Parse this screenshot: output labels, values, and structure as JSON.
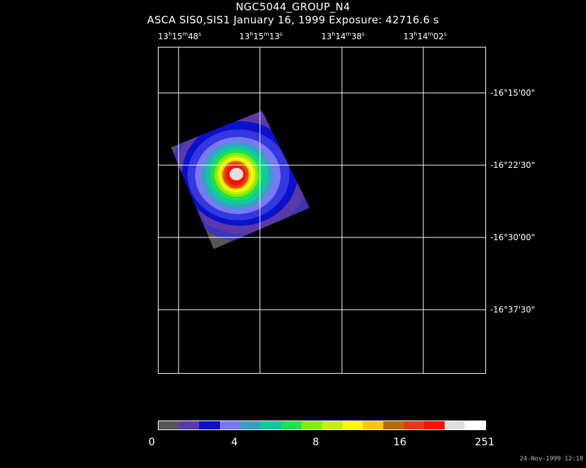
{
  "title": "NGC5044_GROUP_N4",
  "subtitle": "ASCA SIS0,SIS1 January 16, 1999 Exposure: 42716.6 s",
  "ra_ticks": [
    {
      "h": "13",
      "m": "15",
      "s": "48"
    },
    {
      "h": "13",
      "m": "15",
      "s": "13"
    },
    {
      "h": "13",
      "m": "14",
      "s": "38"
    },
    {
      "h": "13",
      "m": "14",
      "s": "02"
    }
  ],
  "dec_ticks": [
    "-16°15'00\"",
    "-16°22'30\"",
    "-16°30'00\"",
    "-16°37'30\""
  ],
  "colorbar": {
    "colors": [
      "#555555",
      "#5a3aa8",
      "#0a10cc",
      "#7a78f2",
      "#38a0c4",
      "#10c8a0",
      "#1ee050",
      "#80f000",
      "#c8ee10",
      "#ffff00",
      "#ffc800",
      "#b86a08",
      "#e83818",
      "#ff1000",
      "#e0e0e0",
      "#ffffff"
    ],
    "labels": [
      "0",
      "4",
      "8",
      "16",
      "251"
    ]
  },
  "footer": "24-Nov-1999 12:18"
}
